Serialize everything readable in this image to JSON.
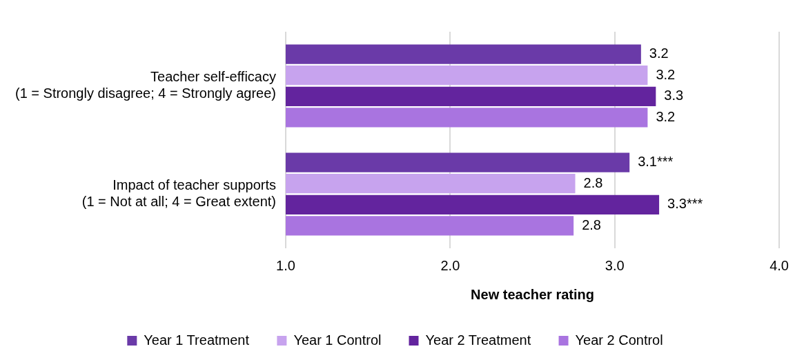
{
  "chart_data": {
    "type": "bar",
    "orientation": "horizontal",
    "categories": [
      "Teacher self-efficacy\n(1 = Strongly disagree; 4 = Strongly agree)",
      "Impact of teacher supports\n(1 = Not at all; 4 = Great extent)"
    ],
    "series": [
      {
        "name": "Year 1 Treatment",
        "color": "#6a3aa8",
        "values": [
          3.16,
          3.09
        ],
        "value_labels": [
          "3.2",
          "3.1***"
        ]
      },
      {
        "name": "Year 1 Control",
        "color": "#c7a3ee",
        "values": [
          3.2,
          2.76
        ],
        "value_labels": [
          "3.2",
          "2.8"
        ]
      },
      {
        "name": "Year 2 Treatment",
        "color": "#63249e",
        "values": [
          3.25,
          3.27
        ],
        "value_labels": [
          "3.3",
          "3.3***"
        ]
      },
      {
        "name": "Year 2 Control",
        "color": "#a974e0",
        "values": [
          3.2,
          2.75
        ],
        "value_labels": [
          "3.2",
          "2.8"
        ]
      }
    ],
    "xlabel": "New teacher rating",
    "xlim": [
      1,
      4
    ],
    "xticks": [
      {
        "value": 1,
        "label": "1.0"
      },
      {
        "value": 2,
        "label": "2.0"
      },
      {
        "value": 3,
        "label": "3.0"
      },
      {
        "value": 4,
        "label": "4.0"
      }
    ],
    "grid": "x",
    "legend": "bottom"
  }
}
